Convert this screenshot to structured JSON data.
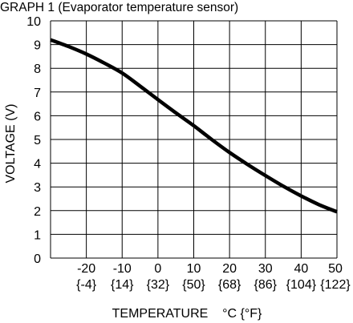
{
  "chart_data": {
    "type": "line",
    "title": "GRAPH 1 (Evaporator temperature sensor)",
    "xlabel": "TEMPERATURE    °C {°F}",
    "ylabel": "VOLTAGE (V)",
    "xlim": [
      -30,
      50
    ],
    "ylim": [
      0,
      10
    ],
    "x_ticks": [
      -20,
      -10,
      0,
      10,
      20,
      30,
      40,
      50
    ],
    "x_tick_labels": [
      "-20",
      "-10",
      "0",
      "10",
      "20",
      "30",
      "40",
      "50"
    ],
    "x_tick_sublabels": [
      "{-4}",
      "{14}",
      "{32}",
      "{50}",
      "{68}",
      "{86}",
      "{104}",
      "{122}"
    ],
    "y_ticks": [
      0,
      1,
      2,
      3,
      4,
      5,
      6,
      7,
      8,
      9,
      10
    ],
    "y_tick_labels": [
      "0",
      "1",
      "2",
      "3",
      "4",
      "5",
      "6",
      "7",
      "8",
      "9",
      "10"
    ],
    "grid": true,
    "series": [
      {
        "x": [
          -30,
          -25,
          -20,
          -15,
          -10,
          -5,
          0,
          5,
          10,
          15,
          20,
          25,
          30,
          35,
          40,
          45,
          50
        ],
        "y": [
          9.2,
          8.92,
          8.6,
          8.22,
          7.8,
          7.25,
          6.68,
          6.12,
          5.58,
          5.0,
          4.45,
          3.95,
          3.48,
          3.03,
          2.62,
          2.25,
          1.95
        ]
      }
    ]
  }
}
